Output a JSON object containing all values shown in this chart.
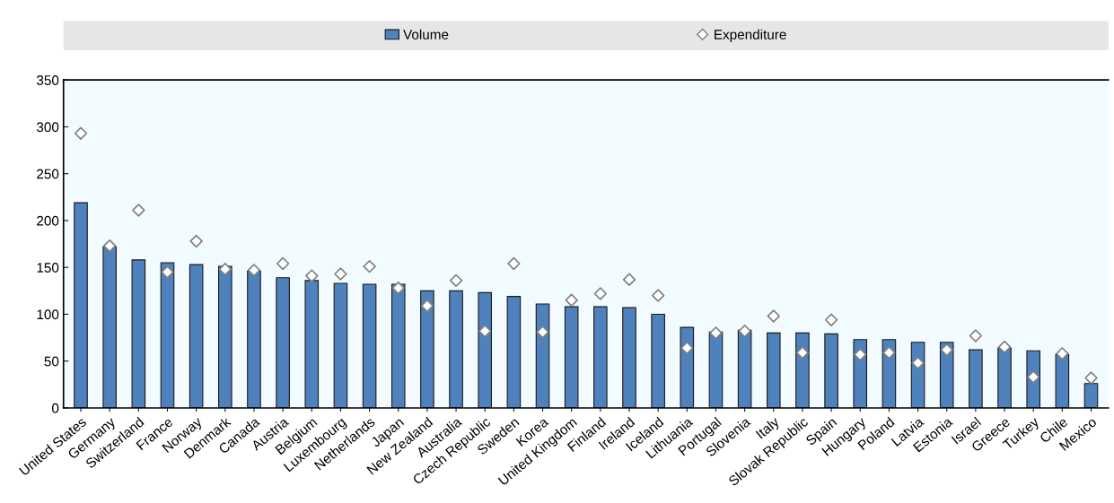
{
  "chart_data": {
    "type": "bar",
    "categories": [
      "United States",
      "Germany",
      "Switzerland",
      "France",
      "Norway",
      "Denmark",
      "Canada",
      "Austria",
      "Belgium",
      "Luxembourg",
      "Netherlands",
      "Japan",
      "New Zealand",
      "Australia",
      "Czech Republic",
      "Sweden",
      "Korea",
      "United Kingdom",
      "Finland",
      "Ireland",
      "Iceland",
      "Lithuania",
      "Portugal",
      "Slovenia",
      "Italy",
      "Slovak Republic",
      "Spain",
      "Hungary",
      "Poland",
      "Latvia",
      "Estonia",
      "Israel",
      "Greece",
      "Turkey",
      "Chile",
      "Mexico"
    ],
    "series": [
      {
        "name": "Volume",
        "color": "#4f81bd",
        "values": [
          219,
          172,
          158,
          155,
          153,
          151,
          146,
          139,
          136,
          133,
          132,
          132,
          125,
          125,
          123,
          119,
          111,
          108,
          108,
          107,
          100,
          86,
          81,
          83,
          80,
          80,
          79,
          73,
          73,
          70,
          70,
          62,
          64,
          61,
          57,
          26
        ]
      },
      {
        "name": "Expenditure",
        "type": "scatter",
        "color": "#ffffff",
        "values": [
          293,
          173,
          211,
          145,
          178,
          148,
          147,
          154,
          141,
          143,
          151,
          128,
          109,
          136,
          82,
          154,
          81,
          115,
          122,
          137,
          120,
          64,
          80,
          82,
          98,
          59,
          94,
          57,
          59,
          48,
          62,
          77,
          65,
          33,
          58,
          32
        ]
      }
    ],
    "ylim": [
      0,
      350
    ],
    "yticks": [
      0,
      50,
      100,
      150,
      200,
      250,
      300,
      350
    ],
    "grid": false,
    "legend": "top",
    "marker": "diamond"
  }
}
